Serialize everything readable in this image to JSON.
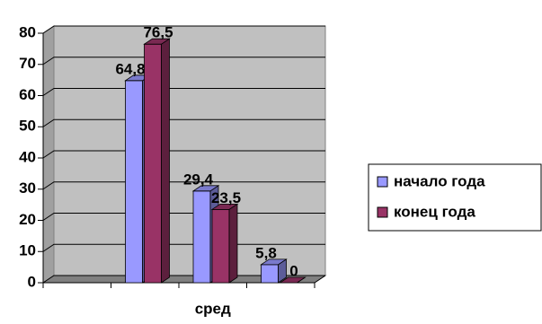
{
  "chart_data": {
    "type": "bar3d",
    "categories": [
      null,
      null,
      "сред",
      null
    ],
    "series": [
      {
        "name": "начало года",
        "color": "#9999ff",
        "values": [
          null,
          64.8,
          29.4,
          5.8
        ],
        "value_labels": [
          null,
          "64,8",
          "29,4",
          "5,8"
        ]
      },
      {
        "name": "конец года",
        "color": "#993366",
        "values": [
          null,
          76.5,
          23.5,
          0
        ],
        "value_labels": [
          null,
          "76,5",
          "23,5",
          "0"
        ]
      }
    ],
    "ylim": [
      0,
      80
    ],
    "yticks": [
      0,
      10,
      20,
      30,
      40,
      50,
      60,
      70,
      80
    ],
    "grid": true,
    "legend": "right"
  }
}
